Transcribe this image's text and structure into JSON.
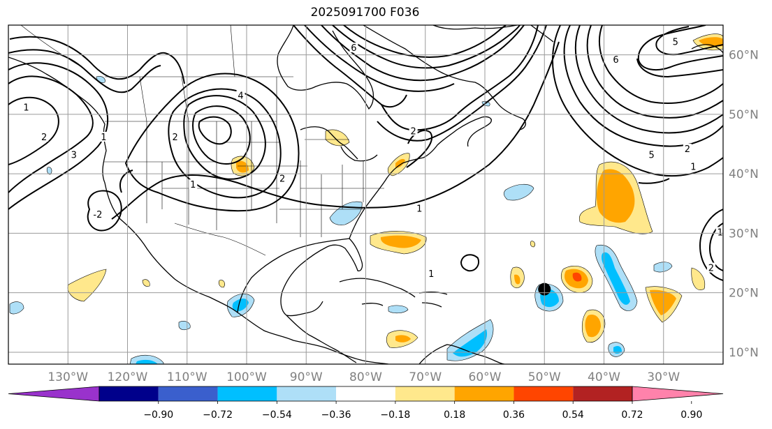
{
  "title": "2025091700 F036",
  "map": {
    "lon_range": [
      -140,
      -20
    ],
    "lat_range": [
      8,
      65
    ],
    "lon_ticks": [
      {
        "value": -130,
        "label": "130°W"
      },
      {
        "value": -120,
        "label": "120°W"
      },
      {
        "value": -110,
        "label": "110°W"
      },
      {
        "value": -100,
        "label": "100°W"
      },
      {
        "value": -90,
        "label": "90°W"
      },
      {
        "value": -80,
        "label": "80°W"
      },
      {
        "value": -70,
        "label": "70°W"
      },
      {
        "value": -60,
        "label": "60°W"
      },
      {
        "value": -50,
        "label": "50°W"
      },
      {
        "value": -40,
        "label": "40°W"
      },
      {
        "value": -30,
        "label": "30°W"
      }
    ],
    "lat_ticks": [
      {
        "value": 60,
        "label": "60°N"
      },
      {
        "value": 50,
        "label": "50°N"
      },
      {
        "value": 40,
        "label": "40°N"
      },
      {
        "value": 30,
        "label": "30°N"
      },
      {
        "value": 20,
        "label": "20°N"
      },
      {
        "value": 10,
        "label": "10°N"
      }
    ],
    "marker": {
      "lon": -50,
      "lat": 20.6,
      "color": "#000000"
    },
    "contour_labels": [
      {
        "text": "1",
        "lon": -137,
        "lat": 51
      },
      {
        "text": "2",
        "lon": -134,
        "lat": 46
      },
      {
        "text": "3",
        "lon": -129,
        "lat": 43
      },
      {
        "text": "-2",
        "lon": -125,
        "lat": 33
      },
      {
        "text": "1",
        "lon": -124,
        "lat": 46
      },
      {
        "text": "2",
        "lon": -112,
        "lat": 46
      },
      {
        "text": "1",
        "lon": -109,
        "lat": 38
      },
      {
        "text": "4",
        "lon": -101,
        "lat": 53
      },
      {
        "text": "2",
        "lon": -94,
        "lat": 39
      },
      {
        "text": "6",
        "lon": -82,
        "lat": 61
      },
      {
        "text": "2",
        "lon": -72,
        "lat": 47
      },
      {
        "text": "1",
        "lon": -71,
        "lat": 34
      },
      {
        "text": "1",
        "lon": -69,
        "lat": 23
      },
      {
        "text": "6",
        "lon": -38,
        "lat": 59
      },
      {
        "text": "5",
        "lon": -32,
        "lat": 43
      },
      {
        "text": "1",
        "lon": -25,
        "lat": 41
      },
      {
        "text": "2",
        "lon": -26,
        "lat": 44
      },
      {
        "text": "5",
        "lon": -28,
        "lat": 62
      },
      {
        "text": "1",
        "lon": -20.5,
        "lat": 30
      },
      {
        "text": "2",
        "lon": -22,
        "lat": 24
      }
    ]
  },
  "colorbar": {
    "colors": [
      "#9932cc",
      "#00008b",
      "#3a5fcd",
      "#00bfff",
      "#aedff7",
      "#ffffff",
      "#ffe88c",
      "#ffa500",
      "#ff4500",
      "#b22222",
      "#ff82ab"
    ],
    "tick_labels": [
      "−0.90",
      "−0.72",
      "−0.54",
      "−0.36",
      "−0.18",
      "0.18",
      "0.36",
      "0.54",
      "0.72",
      "0.90"
    ]
  }
}
